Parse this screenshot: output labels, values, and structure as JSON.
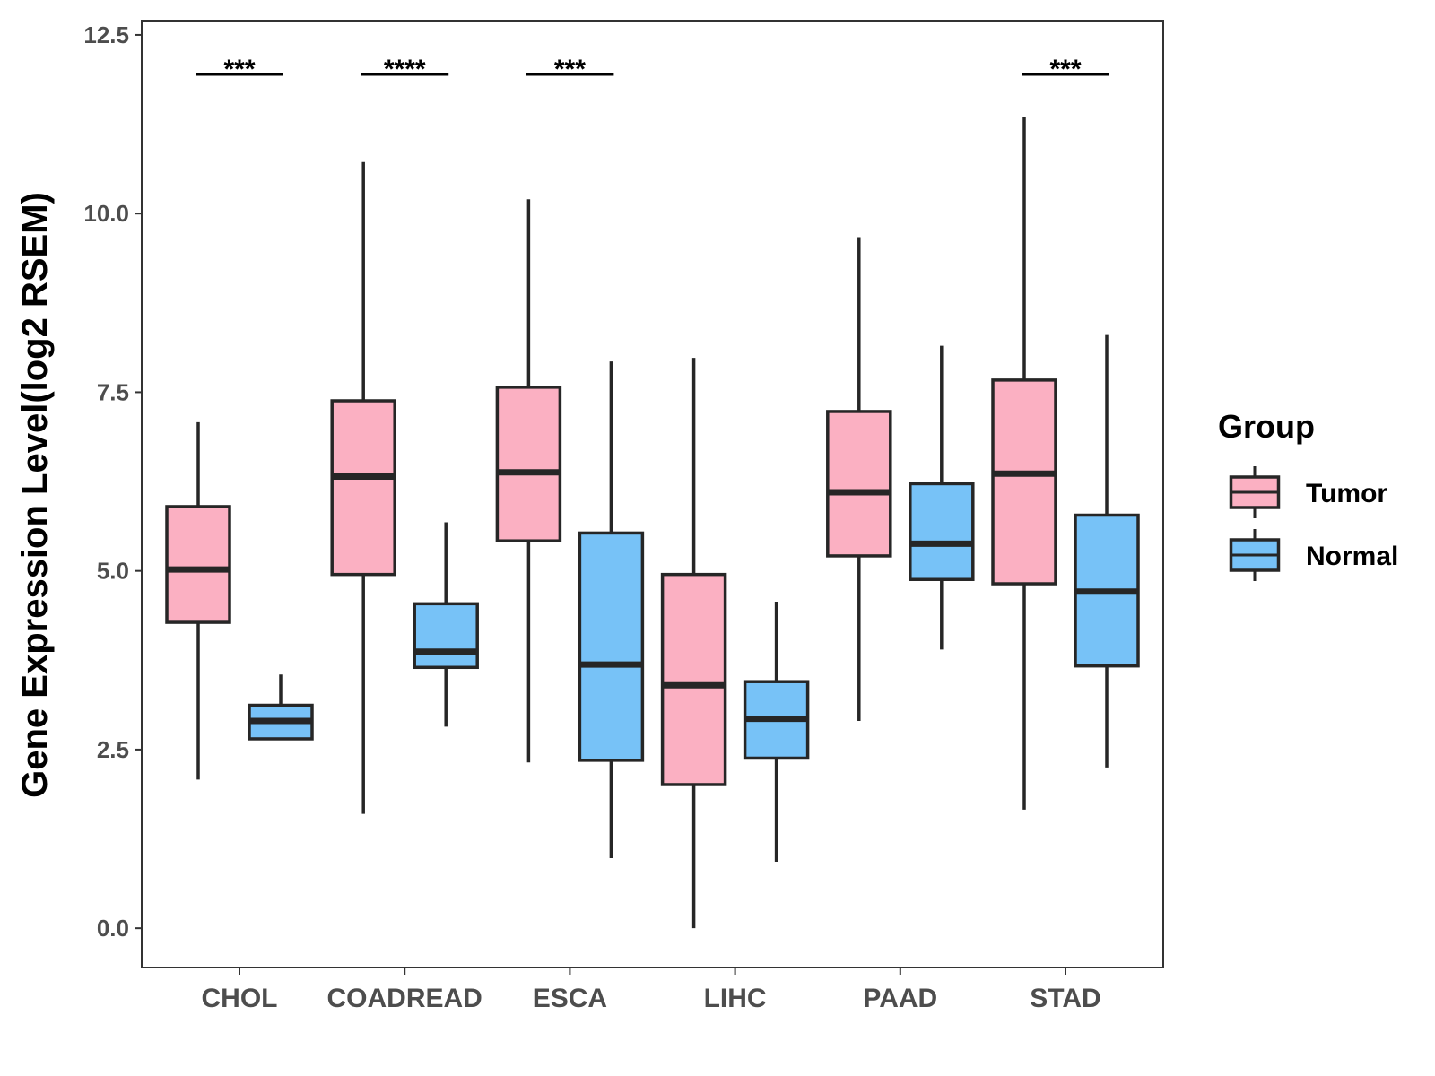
{
  "chart_data": {
    "type": "boxplot",
    "title": "",
    "xlabel": "",
    "ylabel": "Gene Expression Level(log2 RSEM)",
    "ylim": [
      -0.55,
      12.7
    ],
    "yticks": [
      0.0,
      2.5,
      5.0,
      7.5,
      10.0,
      12.5
    ],
    "ytick_labels": [
      "0.0",
      "2.5",
      "5.0",
      "7.5",
      "10.0",
      "12.5"
    ],
    "categories": [
      "CHOL",
      "COADREAD",
      "ESCA",
      "LIHC",
      "PAAD",
      "STAD"
    ],
    "legend": {
      "title": "Group",
      "position": "right",
      "entries": [
        "Tumor",
        "Normal"
      ]
    },
    "series": [
      {
        "name": "Tumor",
        "color": "#FBB0C2",
        "boxes": [
          {
            "category": "CHOL",
            "min": 2.08,
            "q1": 4.28,
            "median": 5.02,
            "q3": 5.9,
            "max": 7.08
          },
          {
            "category": "COADREAD",
            "min": 1.6,
            "q1": 4.95,
            "median": 6.32,
            "q3": 7.38,
            "max": 10.72
          },
          {
            "category": "ESCA",
            "min": 2.32,
            "q1": 5.42,
            "median": 6.38,
            "q3": 7.57,
            "max": 10.2
          },
          {
            "category": "LIHC",
            "min": 0.0,
            "q1": 2.01,
            "median": 3.4,
            "q3": 4.95,
            "max": 7.98
          },
          {
            "category": "PAAD",
            "min": 2.9,
            "q1": 5.21,
            "median": 6.1,
            "q3": 7.23,
            "max": 9.67
          },
          {
            "category": "STAD",
            "min": 1.66,
            "q1": 4.82,
            "median": 6.36,
            "q3": 7.67,
            "max": 11.35
          }
        ]
      },
      {
        "name": "Normal",
        "color": "#77C2F7",
        "boxes": [
          {
            "category": "CHOL",
            "min": 2.65,
            "q1": 2.65,
            "median": 2.9,
            "q3": 3.12,
            "max": 3.55
          },
          {
            "category": "COADREAD",
            "min": 2.82,
            "q1": 3.65,
            "median": 3.87,
            "q3": 4.54,
            "max": 5.68
          },
          {
            "category": "ESCA",
            "min": 0.98,
            "q1": 2.35,
            "median": 3.69,
            "q3": 5.53,
            "max": 7.93
          },
          {
            "category": "LIHC",
            "min": 0.93,
            "q1": 2.38,
            "median": 2.93,
            "q3": 3.45,
            "max": 4.57
          },
          {
            "category": "PAAD",
            "min": 3.9,
            "q1": 4.88,
            "median": 5.38,
            "q3": 6.22,
            "max": 8.15
          },
          {
            "category": "STAD",
            "min": 2.25,
            "q1": 3.67,
            "median": 4.71,
            "q3": 5.78,
            "max": 8.3
          }
        ]
      }
    ],
    "significance": [
      {
        "category": "CHOL",
        "label": "***",
        "y": 11.95
      },
      {
        "category": "COADREAD",
        "label": "****",
        "y": 11.95
      },
      {
        "category": "ESCA",
        "label": "***",
        "y": 11.95
      },
      {
        "category": "STAD",
        "label": "***",
        "y": 11.95
      }
    ]
  }
}
